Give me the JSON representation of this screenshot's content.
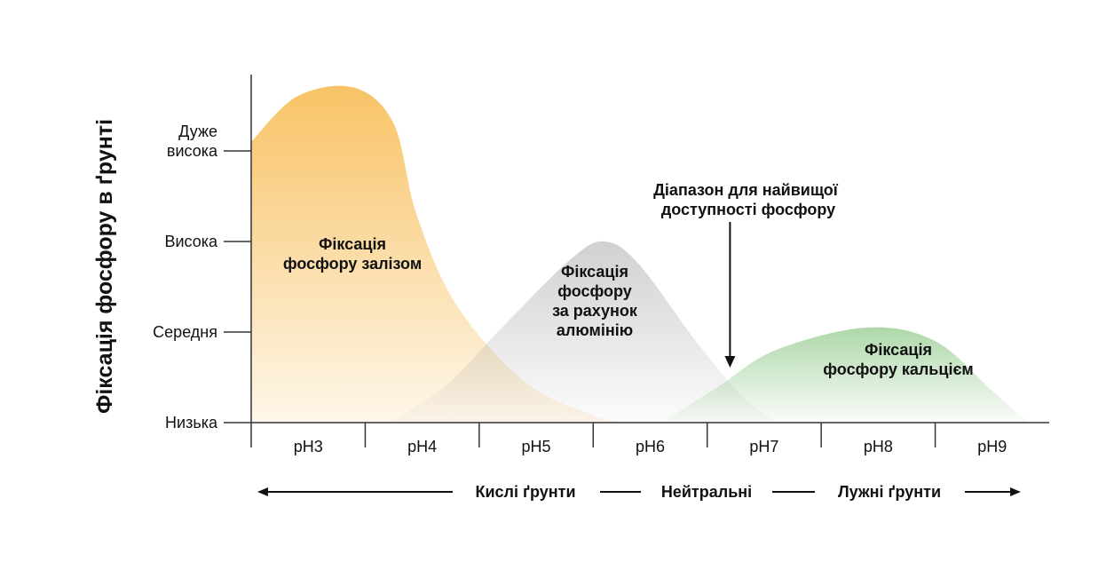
{
  "chart_data": {
    "type": "area",
    "ylabel": "Фіксація фосфору в ґрунті",
    "xlabel": "",
    "categories": [
      "pH3",
      "pH4",
      "pH5",
      "pH6",
      "pH7",
      "pH8",
      "pH9"
    ],
    "y_levels": [
      {
        "value": 0,
        "lines": [
          "Низька"
        ]
      },
      {
        "value": 1,
        "lines": [
          "Середня"
        ]
      },
      {
        "value": 2,
        "lines": [
          "Висока"
        ]
      },
      {
        "value": 3,
        "lines": [
          "Дуже",
          "висока"
        ]
      }
    ],
    "ylim": [
      0,
      3.6
    ],
    "xlim": [
      3,
      10
    ],
    "series": [
      {
        "name": "Фіксація фосфору залізом",
        "label_lines": [
          "Фіксація",
          "фосфору залізом"
        ],
        "color": "#F7B84A",
        "points": [
          [
            3.0,
            3.1
          ],
          [
            3.4,
            3.6
          ],
          [
            3.9,
            3.7
          ],
          [
            4.25,
            3.3
          ],
          [
            4.45,
            2.3
          ],
          [
            4.8,
            1.3
          ],
          [
            5.4,
            0.45
          ],
          [
            6.0,
            0.08
          ],
          [
            6.3,
            0.0
          ]
        ]
      },
      {
        "name": "Фіксація фосфору за рахунок алюмінію",
        "label_lines": [
          "Фіксація",
          "фосфору",
          "за рахунок",
          "алюмінію"
        ],
        "color": "#AAAAAA",
        "points": [
          [
            4.2,
            0.0
          ],
          [
            4.7,
            0.4
          ],
          [
            5.2,
            1.05
          ],
          [
            5.8,
            1.8
          ],
          [
            6.1,
            2.0
          ],
          [
            6.4,
            1.75
          ],
          [
            6.9,
            0.9
          ],
          [
            7.3,
            0.3
          ],
          [
            7.6,
            0.02
          ]
        ]
      },
      {
        "name": "Фіксація фосфору кальцієм",
        "label_lines": [
          "Фіксація",
          "фосфору кальцієм"
        ],
        "color": "#82C27A",
        "points": [
          [
            6.6,
            0.0
          ],
          [
            7.1,
            0.4
          ],
          [
            7.6,
            0.8
          ],
          [
            8.4,
            1.05
          ],
          [
            9.0,
            0.9
          ],
          [
            9.5,
            0.35
          ],
          [
            9.8,
            0.02
          ]
        ]
      }
    ],
    "annotation": {
      "lines": [
        "Діапазон для найвищої",
        "доступності фосфору"
      ],
      "x": 7.2
    },
    "scale": {
      "left": "Кислі ґрунти",
      "middle": "Нейтральні",
      "right": "Лужні ґрунти"
    },
    "grid": false
  }
}
